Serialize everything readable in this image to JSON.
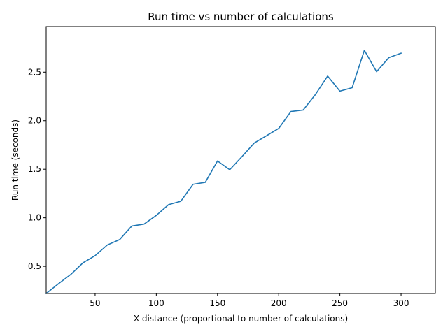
{
  "chart_data": {
    "type": "line",
    "title": "Run time vs number of calculations",
    "xlabel": "X distance (proportional to number of calculations)",
    "ylabel": "Run time (seconds)",
    "xlim": [
      10,
      328
    ],
    "ylim": [
      0.22,
      2.97
    ],
    "xticks": [
      50,
      100,
      150,
      200,
      250,
      300
    ],
    "yticks": [
      0.5,
      1.0,
      1.5,
      2.0,
      2.5
    ],
    "xtick_labels": [
      "50",
      "100",
      "150",
      "200",
      "250",
      "300"
    ],
    "ytick_labels": [
      "0.5",
      "1.0",
      "1.5",
      "2.0",
      "2.5"
    ],
    "grid": false,
    "line_color": "#1f77b4",
    "series": [
      {
        "x": [
          10,
          20,
          30,
          40,
          50,
          60,
          70,
          80,
          90,
          100,
          110,
          120,
          130,
          140,
          150,
          160,
          170,
          180,
          190,
          200,
          210,
          220,
          230,
          240,
          250,
          260,
          270,
          280,
          290,
          300
        ],
        "y": [
          0.22,
          0.32,
          0.415,
          0.535,
          0.61,
          0.72,
          0.775,
          0.915,
          0.935,
          1.025,
          1.135,
          1.17,
          1.345,
          1.365,
          1.585,
          1.495,
          1.63,
          1.77,
          1.845,
          1.92,
          2.095,
          2.11,
          2.27,
          2.46,
          2.305,
          2.34,
          2.725,
          2.505,
          2.65,
          2.695
        ]
      }
    ]
  }
}
